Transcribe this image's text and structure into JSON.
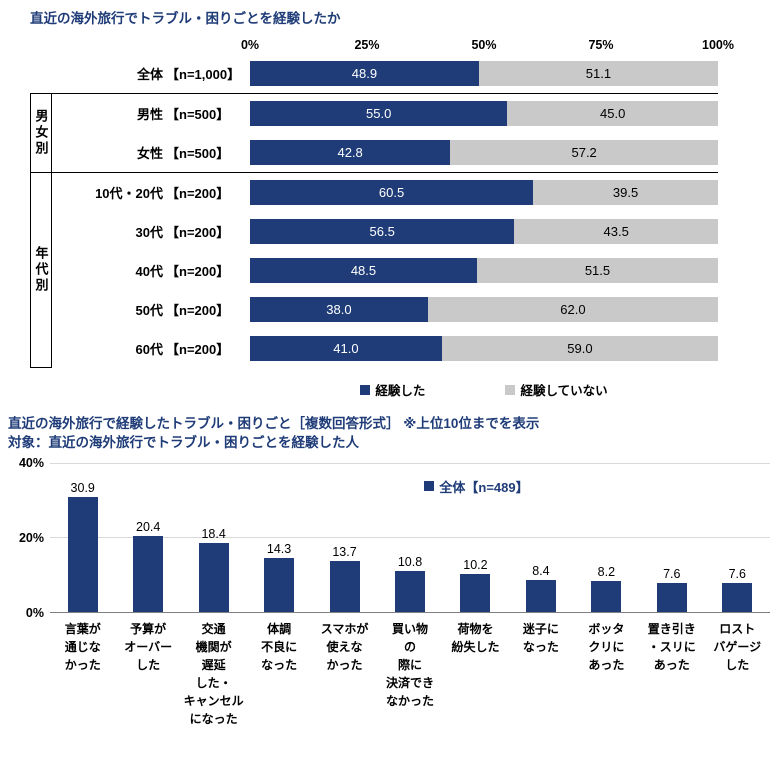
{
  "colors": {
    "navy": "#1f3c78",
    "gray": "#c9c9c9",
    "gridline": "#d9d9d9",
    "axis_line": "#808080",
    "separator": "#000000",
    "title_text": "#1f3c78"
  },
  "chart_data": [
    {
      "type": "bar",
      "orientation": "horizontal_stacked",
      "title": "直近の海外旅行でトラブル・困りごとを経験したか",
      "x_ticks": [
        "0%",
        "25%",
        "50%",
        "75%",
        "100%"
      ],
      "xlim": [
        0,
        100
      ],
      "grid": false,
      "legend_position": "bottom",
      "series": [
        {
          "name": "経験した",
          "color": "#1f3c78"
        },
        {
          "name": "経験していない",
          "color": "#c9c9c9"
        }
      ],
      "groups": [
        {
          "name": "",
          "rows": [
            {
              "label": "全体",
              "n": "【n=1,000】",
              "values": [
                48.9,
                51.1
              ]
            }
          ]
        },
        {
          "name": "男女別",
          "rows": [
            {
              "label": "男性",
              "n": "【n=500】",
              "values": [
                55.0,
                45.0
              ]
            },
            {
              "label": "女性",
              "n": "【n=500】",
              "values": [
                42.8,
                57.2
              ]
            }
          ]
        },
        {
          "name": "年代別",
          "rows": [
            {
              "label": "10代・20代",
              "n": "【n=200】",
              "values": [
                60.5,
                39.5
              ]
            },
            {
              "label": "30代",
              "n": "【n=200】",
              "values": [
                56.5,
                43.5
              ]
            },
            {
              "label": "40代",
              "n": "【n=200】",
              "values": [
                48.5,
                51.5
              ]
            },
            {
              "label": "50代",
              "n": "【n=200】",
              "values": [
                38.0,
                62.0
              ]
            },
            {
              "label": "60代",
              "n": "【n=200】",
              "values": [
                41.0,
                59.0
              ]
            }
          ]
        }
      ]
    },
    {
      "type": "bar",
      "orientation": "vertical",
      "title": "直近の海外旅行で経験したトラブル・困りごと［複数回答形式］ ※上位10位までを表示",
      "subtitle": "対象：直近の海外旅行でトラブル・困りごとを経験した人",
      "legend": {
        "name": "全体【n=489】",
        "color": "#1f3c78"
      },
      "ylim": [
        0,
        40
      ],
      "y_ticks": [
        "40%",
        "20%",
        "0%"
      ],
      "grid": true,
      "legend_position": "top-right-inside",
      "categories": [
        "言葉が通じなかった",
        "予算がオーバーした",
        "交通機関が遅延した・キャンセルになった",
        "体調不良になった",
        "スマホが使えなかった",
        "買い物の際に決済できなかった",
        "荷物を紛失した",
        "迷子になった",
        "ボッタクリにあった",
        "置き引き・スリにあった",
        "ロストバゲージした"
      ],
      "category_lines": [
        [
          "言葉が",
          "通じな",
          "かった"
        ],
        [
          "予算が",
          "オーバー",
          "した"
        ],
        [
          "交通",
          "機関が",
          "遅延",
          "した・",
          "キャンセル",
          "になった"
        ],
        [
          "体調",
          "不良に",
          "なった"
        ],
        [
          "スマホが",
          "使えな",
          "かった"
        ],
        [
          "買い物",
          "の",
          "際に",
          "決済でき",
          "なかった"
        ],
        [
          "荷物を",
          "紛失した"
        ],
        [
          "迷子に",
          "なった"
        ],
        [
          "ボッタ",
          "クリに",
          "あった"
        ],
        [
          "置き引き",
          "・スリに",
          "あった"
        ],
        [
          "ロスト",
          "バゲージ",
          "した"
        ]
      ],
      "values": [
        30.9,
        20.4,
        18.4,
        14.3,
        13.7,
        10.8,
        10.2,
        8.4,
        8.2,
        7.6,
        7.6
      ]
    }
  ]
}
